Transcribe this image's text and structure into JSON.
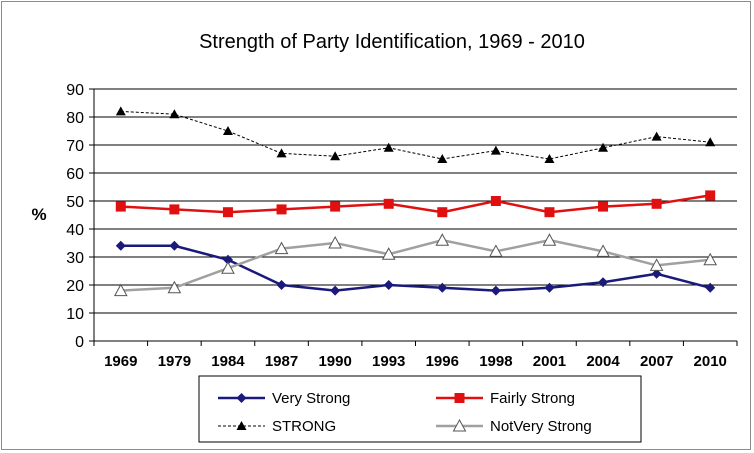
{
  "chart_data": {
    "type": "line",
    "title": "Strength of Party Identification, 1969 - 2010",
    "ylabel": "%",
    "xlabel": "",
    "ylim": [
      0,
      90
    ],
    "yticks": [
      0,
      10,
      20,
      30,
      40,
      50,
      60,
      70,
      80,
      90
    ],
    "grid": true,
    "legend_position": "bottom",
    "categories": [
      "1969",
      "1979",
      "1984",
      "1987",
      "1990",
      "1993",
      "1996",
      "1998",
      "2001",
      "2004",
      "2007",
      "2010"
    ],
    "series": [
      {
        "name": "Very Strong",
        "color": "#1a1a7a",
        "marker": "diamond",
        "dash": "solid",
        "values": [
          34,
          34,
          29,
          20,
          18,
          20,
          19,
          18,
          19,
          21,
          24,
          19
        ]
      },
      {
        "name": "Fairly Strong",
        "color": "#e01010",
        "marker": "square",
        "dash": "solid",
        "values": [
          48,
          47,
          46,
          47,
          48,
          49,
          46,
          50,
          46,
          48,
          49,
          52
        ]
      },
      {
        "name": "STRONG",
        "color": "#000000",
        "marker": "triangle-filled",
        "dash": "dashed",
        "values": [
          82,
          81,
          75,
          67,
          66,
          69,
          65,
          68,
          65,
          69,
          73,
          71
        ]
      },
      {
        "name": "NotVery Strong",
        "color": "#a0a0a0",
        "marker": "triangle-open",
        "dash": "solid",
        "values": [
          18,
          19,
          26,
          33,
          35,
          31,
          36,
          32,
          36,
          32,
          27,
          29
        ]
      }
    ]
  }
}
